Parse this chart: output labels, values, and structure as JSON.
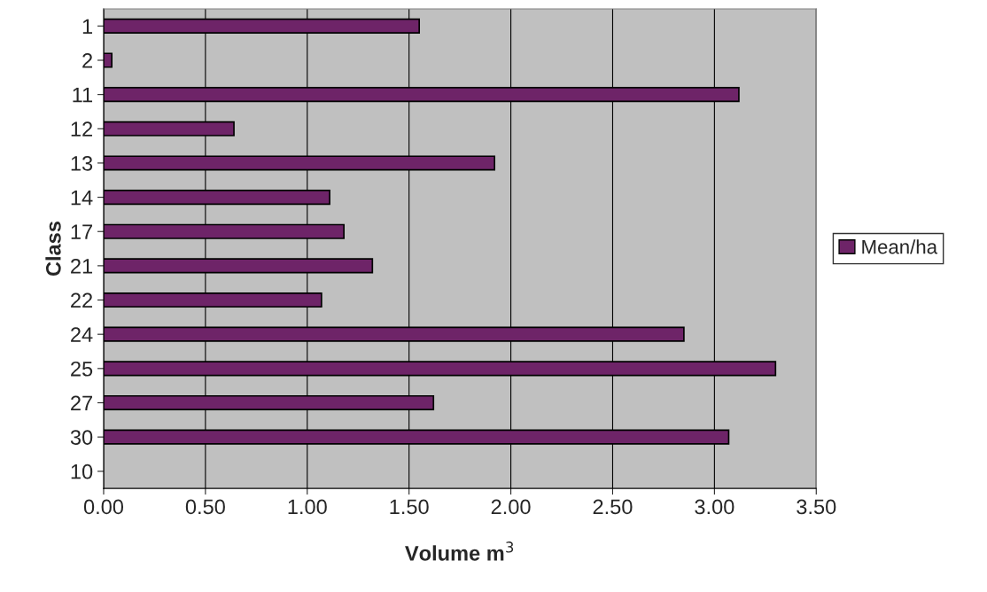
{
  "chart_data": {
    "type": "bar",
    "orientation": "horizontal",
    "xlabel": "Volume m$^{3}$",
    "ylabel": "Class",
    "categories": [
      "1",
      "2",
      "11",
      "12",
      "13",
      "14",
      "17",
      "21",
      "22",
      "24",
      "25",
      "27",
      "30",
      "10"
    ],
    "series": [
      {
        "name": "Mean/ha",
        "color": "#6e2468",
        "values": [
          1.55,
          0.04,
          3.12,
          0.64,
          1.92,
          1.11,
          1.18,
          1.32,
          1.07,
          2.85,
          3.3,
          1.62,
          3.07,
          null
        ]
      }
    ],
    "xlim": [
      0,
      3.5
    ],
    "xticks": [
      {
        "value": 0,
        "label": "0.00"
      },
      {
        "value": 0.5,
        "label": "0.50"
      },
      {
        "value": 1,
        "label": "1.00"
      },
      {
        "value": 1.5,
        "label": "1.50"
      },
      {
        "value": 2,
        "label": "2.00"
      },
      {
        "value": 2.5,
        "label": "2.50"
      },
      {
        "value": 3,
        "label": "3.00"
      },
      {
        "value": 3.5,
        "label": "3.50"
      }
    ],
    "grid": "x",
    "legend": "right"
  }
}
